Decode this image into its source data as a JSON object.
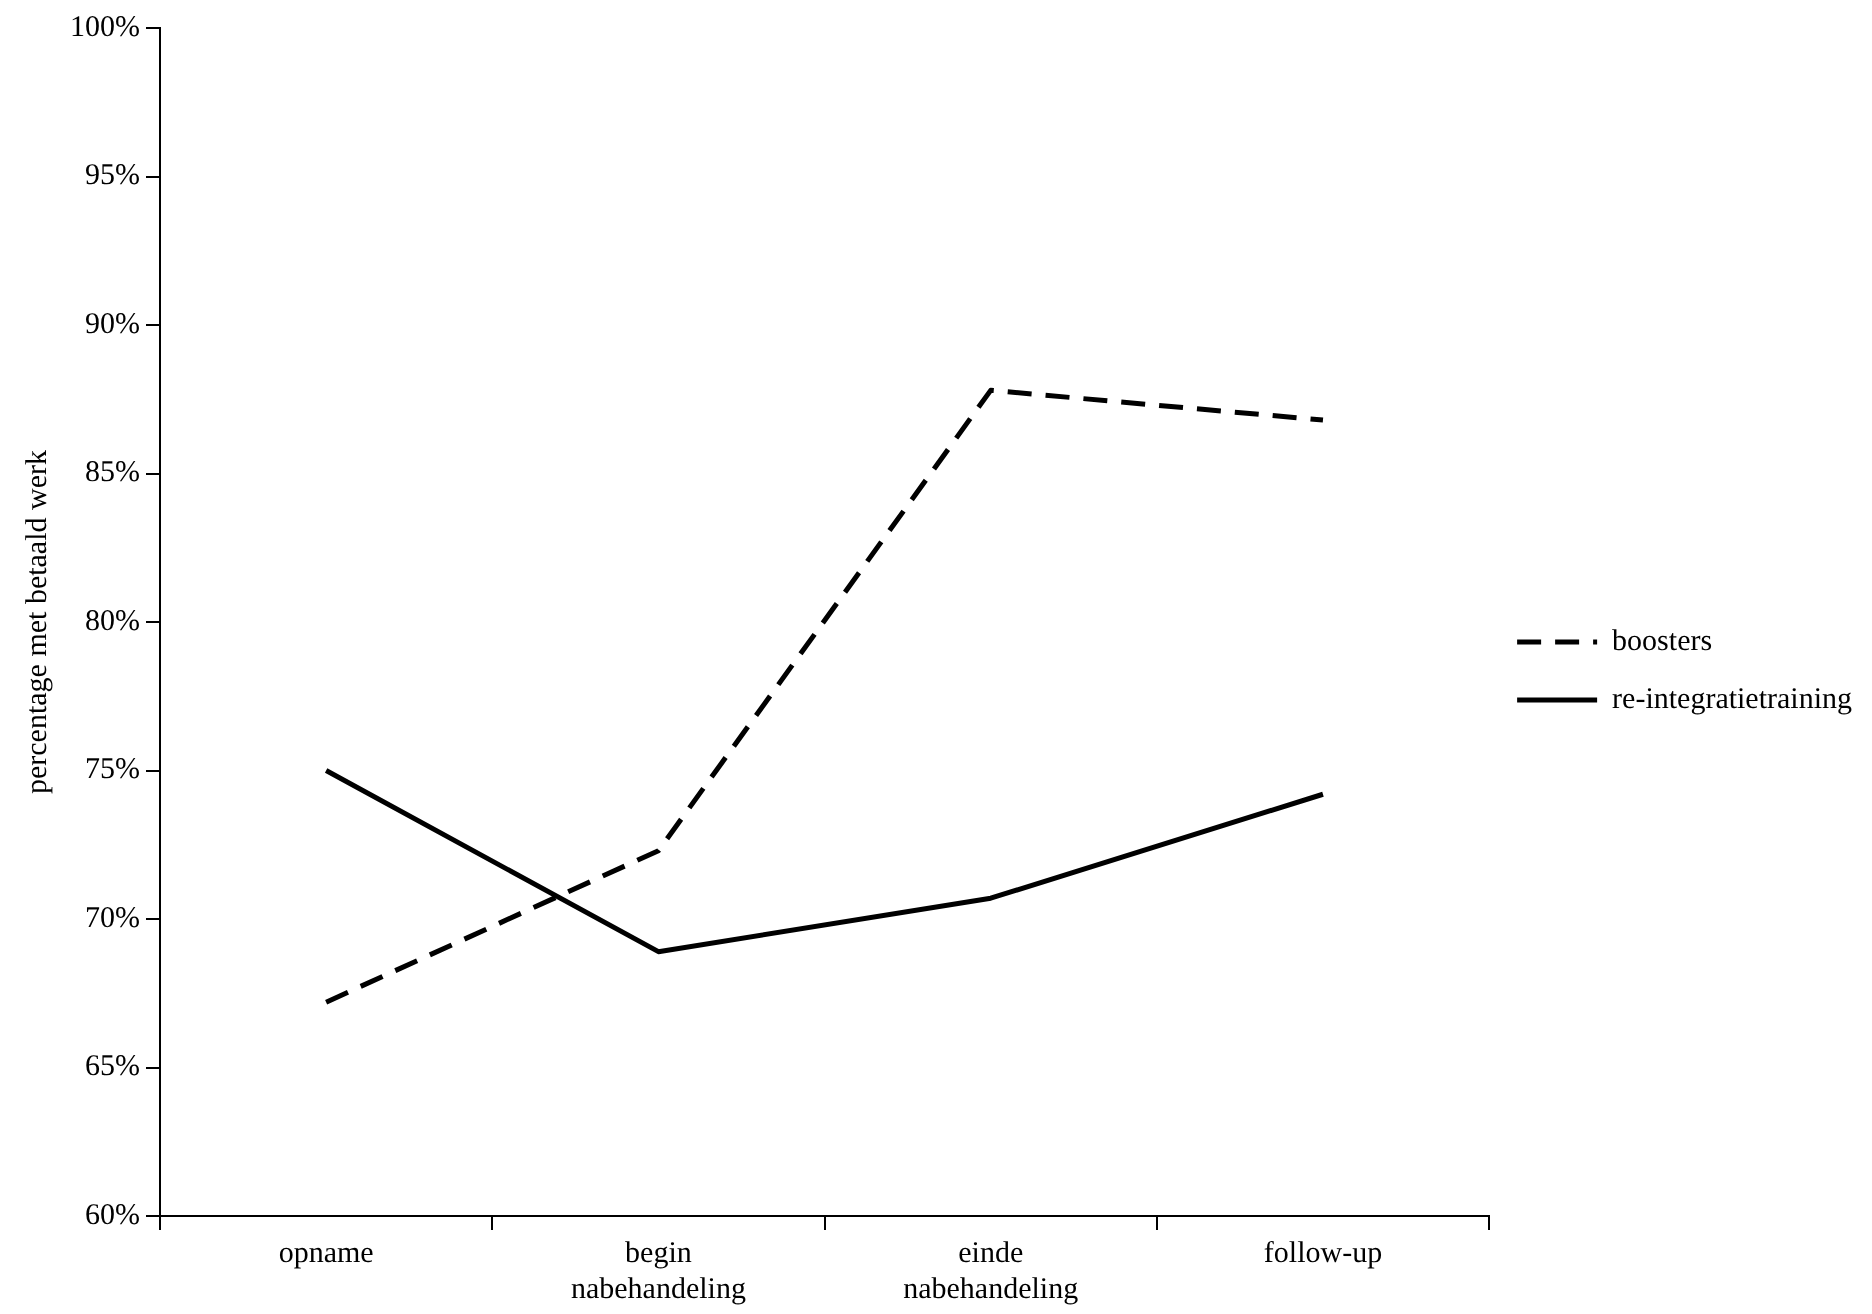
{
  "chart_data": {
    "type": "line",
    "ylabel": "percentage met betaald werk",
    "categories": [
      "opname",
      "begin nabehandeling",
      "einde nabehandeling",
      "follow-up"
    ],
    "series": [
      {
        "name": "boosters",
        "color": "#000000",
        "values": [
          67.2,
          72.3,
          87.8,
          86.8
        ],
        "line_style": "dashed"
      },
      {
        "name": "re-integratietraining",
        "color": "#000000",
        "values": [
          75.0,
          68.9,
          70.7,
          74.2
        ],
        "line_style": "solid"
      }
    ],
    "ylim": [
      60,
      100
    ],
    "yticks": [
      {
        "value": 60,
        "label": "60%"
      },
      {
        "value": 65,
        "label": "65%"
      },
      {
        "value": 70,
        "label": "70%"
      },
      {
        "value": 75,
        "label": "75%"
      },
      {
        "value": 80,
        "label": "80%"
      },
      {
        "value": 85,
        "label": "85%"
      },
      {
        "value": 90,
        "label": "90%"
      },
      {
        "value": 95,
        "label": "95%"
      },
      {
        "value": 100,
        "label": "100%"
      }
    ],
    "grid": false,
    "legend": "right",
    "marker": "none"
  }
}
